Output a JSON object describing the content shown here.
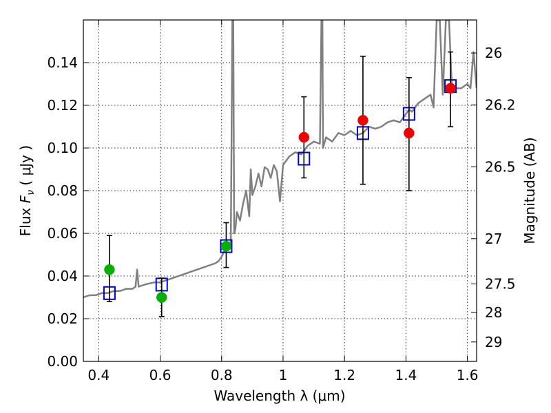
{
  "chart_data": {
    "type": "scatter",
    "xlabel": "Wavelength  λ (μm)",
    "ylabel_left": "Flux  F_ν  ( μJy )",
    "ylabel_right": "Magnitude (AB)",
    "xlim": [
      0.35,
      1.63
    ],
    "ylim": [
      0.0,
      0.16
    ],
    "x_ticks": [
      0.4,
      0.6,
      0.8,
      1.0,
      1.2,
      1.4,
      1.6
    ],
    "x_tick_labels": [
      "0.4",
      "0.6",
      "0.8",
      "1",
      "1.2",
      "1.4",
      "1.6"
    ],
    "y_ticks": [
      0.0,
      0.02,
      0.04,
      0.06,
      0.08,
      0.1,
      0.12,
      0.14
    ],
    "y_tick_labels": [
      "0.00",
      "0.02",
      "0.04",
      "0.06",
      "0.08",
      "0.10",
      "0.12",
      "0.14"
    ],
    "right_ticks": [
      {
        "flux": 0.1445,
        "label": "26"
      },
      {
        "flux": 0.1202,
        "label": "26.2"
      },
      {
        "flux": 0.0912,
        "label": "26.5"
      },
      {
        "flux": 0.0575,
        "label": "27"
      },
      {
        "flux": 0.0363,
        "label": "27.5"
      },
      {
        "flux": 0.0229,
        "label": "28"
      },
      {
        "flux": 0.0091,
        "label": "29"
      }
    ],
    "grid": true,
    "colors": {
      "model": "#808080",
      "model_markers": "#0000cc",
      "green_points": "#00b000",
      "red_points": "#ee0000",
      "errorbars": "#000000"
    },
    "series": [
      {
        "name": "model-spectrum",
        "style": "line",
        "x": [
          0.35,
          0.37,
          0.39,
          0.41,
          0.43,
          0.45,
          0.47,
          0.49,
          0.51,
          0.52,
          0.525,
          0.53,
          0.55,
          0.58,
          0.6,
          0.62,
          0.64,
          0.66,
          0.68,
          0.7,
          0.72,
          0.74,
          0.76,
          0.78,
          0.79,
          0.8,
          0.81,
          0.82,
          0.83,
          0.835,
          0.838,
          0.841,
          0.845,
          0.85,
          0.86,
          0.87,
          0.88,
          0.89,
          0.895,
          0.9,
          0.91,
          0.92,
          0.93,
          0.94,
          0.95,
          0.96,
          0.97,
          0.98,
          0.99,
          1.0,
          1.02,
          1.04,
          1.06,
          1.07,
          1.08,
          1.1,
          1.12,
          1.125,
          1.128,
          1.13,
          1.14,
          1.16,
          1.18,
          1.2,
          1.22,
          1.24,
          1.26,
          1.28,
          1.3,
          1.32,
          1.34,
          1.36,
          1.38,
          1.4,
          1.41,
          1.42,
          1.44,
          1.46,
          1.48,
          1.49,
          1.5,
          1.51,
          1.52,
          1.53,
          1.54,
          1.55,
          1.56,
          1.58,
          1.6,
          1.61,
          1.62,
          1.63
        ],
        "y": [
          0.03,
          0.031,
          0.031,
          0.032,
          0.032,
          0.033,
          0.033,
          0.034,
          0.034,
          0.035,
          0.043,
          0.035,
          0.036,
          0.037,
          0.037,
          0.038,
          0.039,
          0.04,
          0.041,
          0.042,
          0.043,
          0.044,
          0.045,
          0.046,
          0.047,
          0.049,
          0.052,
          0.055,
          0.056,
          0.16,
          0.16,
          0.06,
          0.062,
          0.07,
          0.066,
          0.074,
          0.08,
          0.068,
          0.09,
          0.078,
          0.082,
          0.088,
          0.082,
          0.091,
          0.09,
          0.086,
          0.092,
          0.089,
          0.075,
          0.092,
          0.096,
          0.098,
          0.097,
          0.099,
          0.101,
          0.103,
          0.102,
          0.16,
          0.16,
          0.1,
          0.105,
          0.103,
          0.107,
          0.106,
          0.108,
          0.106,
          0.107,
          0.11,
          0.109,
          0.11,
          0.112,
          0.113,
          0.112,
          0.116,
          0.118,
          0.117,
          0.121,
          0.123,
          0.125,
          0.119,
          0.16,
          0.16,
          0.125,
          0.16,
          0.16,
          0.127,
          0.128,
          0.128,
          0.13,
          0.128,
          0.145,
          0.128
        ]
      },
      {
        "name": "model-photometry",
        "style": "open-square",
        "x": [
          0.435,
          0.605,
          0.815,
          1.068,
          1.26,
          1.41,
          1.545
        ],
        "y": [
          0.032,
          0.036,
          0.054,
          0.095,
          0.107,
          0.116,
          0.129
        ]
      },
      {
        "name": "observed-green",
        "style": "filled-circle",
        "x": [
          0.435,
          0.605,
          0.815
        ],
        "y": [
          0.043,
          0.03,
          0.054
        ],
        "err_low": [
          0.028,
          0.021,
          0.044
        ],
        "err_high": [
          0.059,
          0.039,
          0.065
        ]
      },
      {
        "name": "observed-red",
        "style": "filled-circle",
        "x": [
          1.068,
          1.26,
          1.41,
          1.545
        ],
        "y": [
          0.105,
          0.113,
          0.107,
          0.128
        ],
        "err_low": [
          0.086,
          0.083,
          0.08,
          0.11
        ],
        "err_high": [
          0.124,
          0.143,
          0.133,
          0.145
        ]
      }
    ]
  }
}
